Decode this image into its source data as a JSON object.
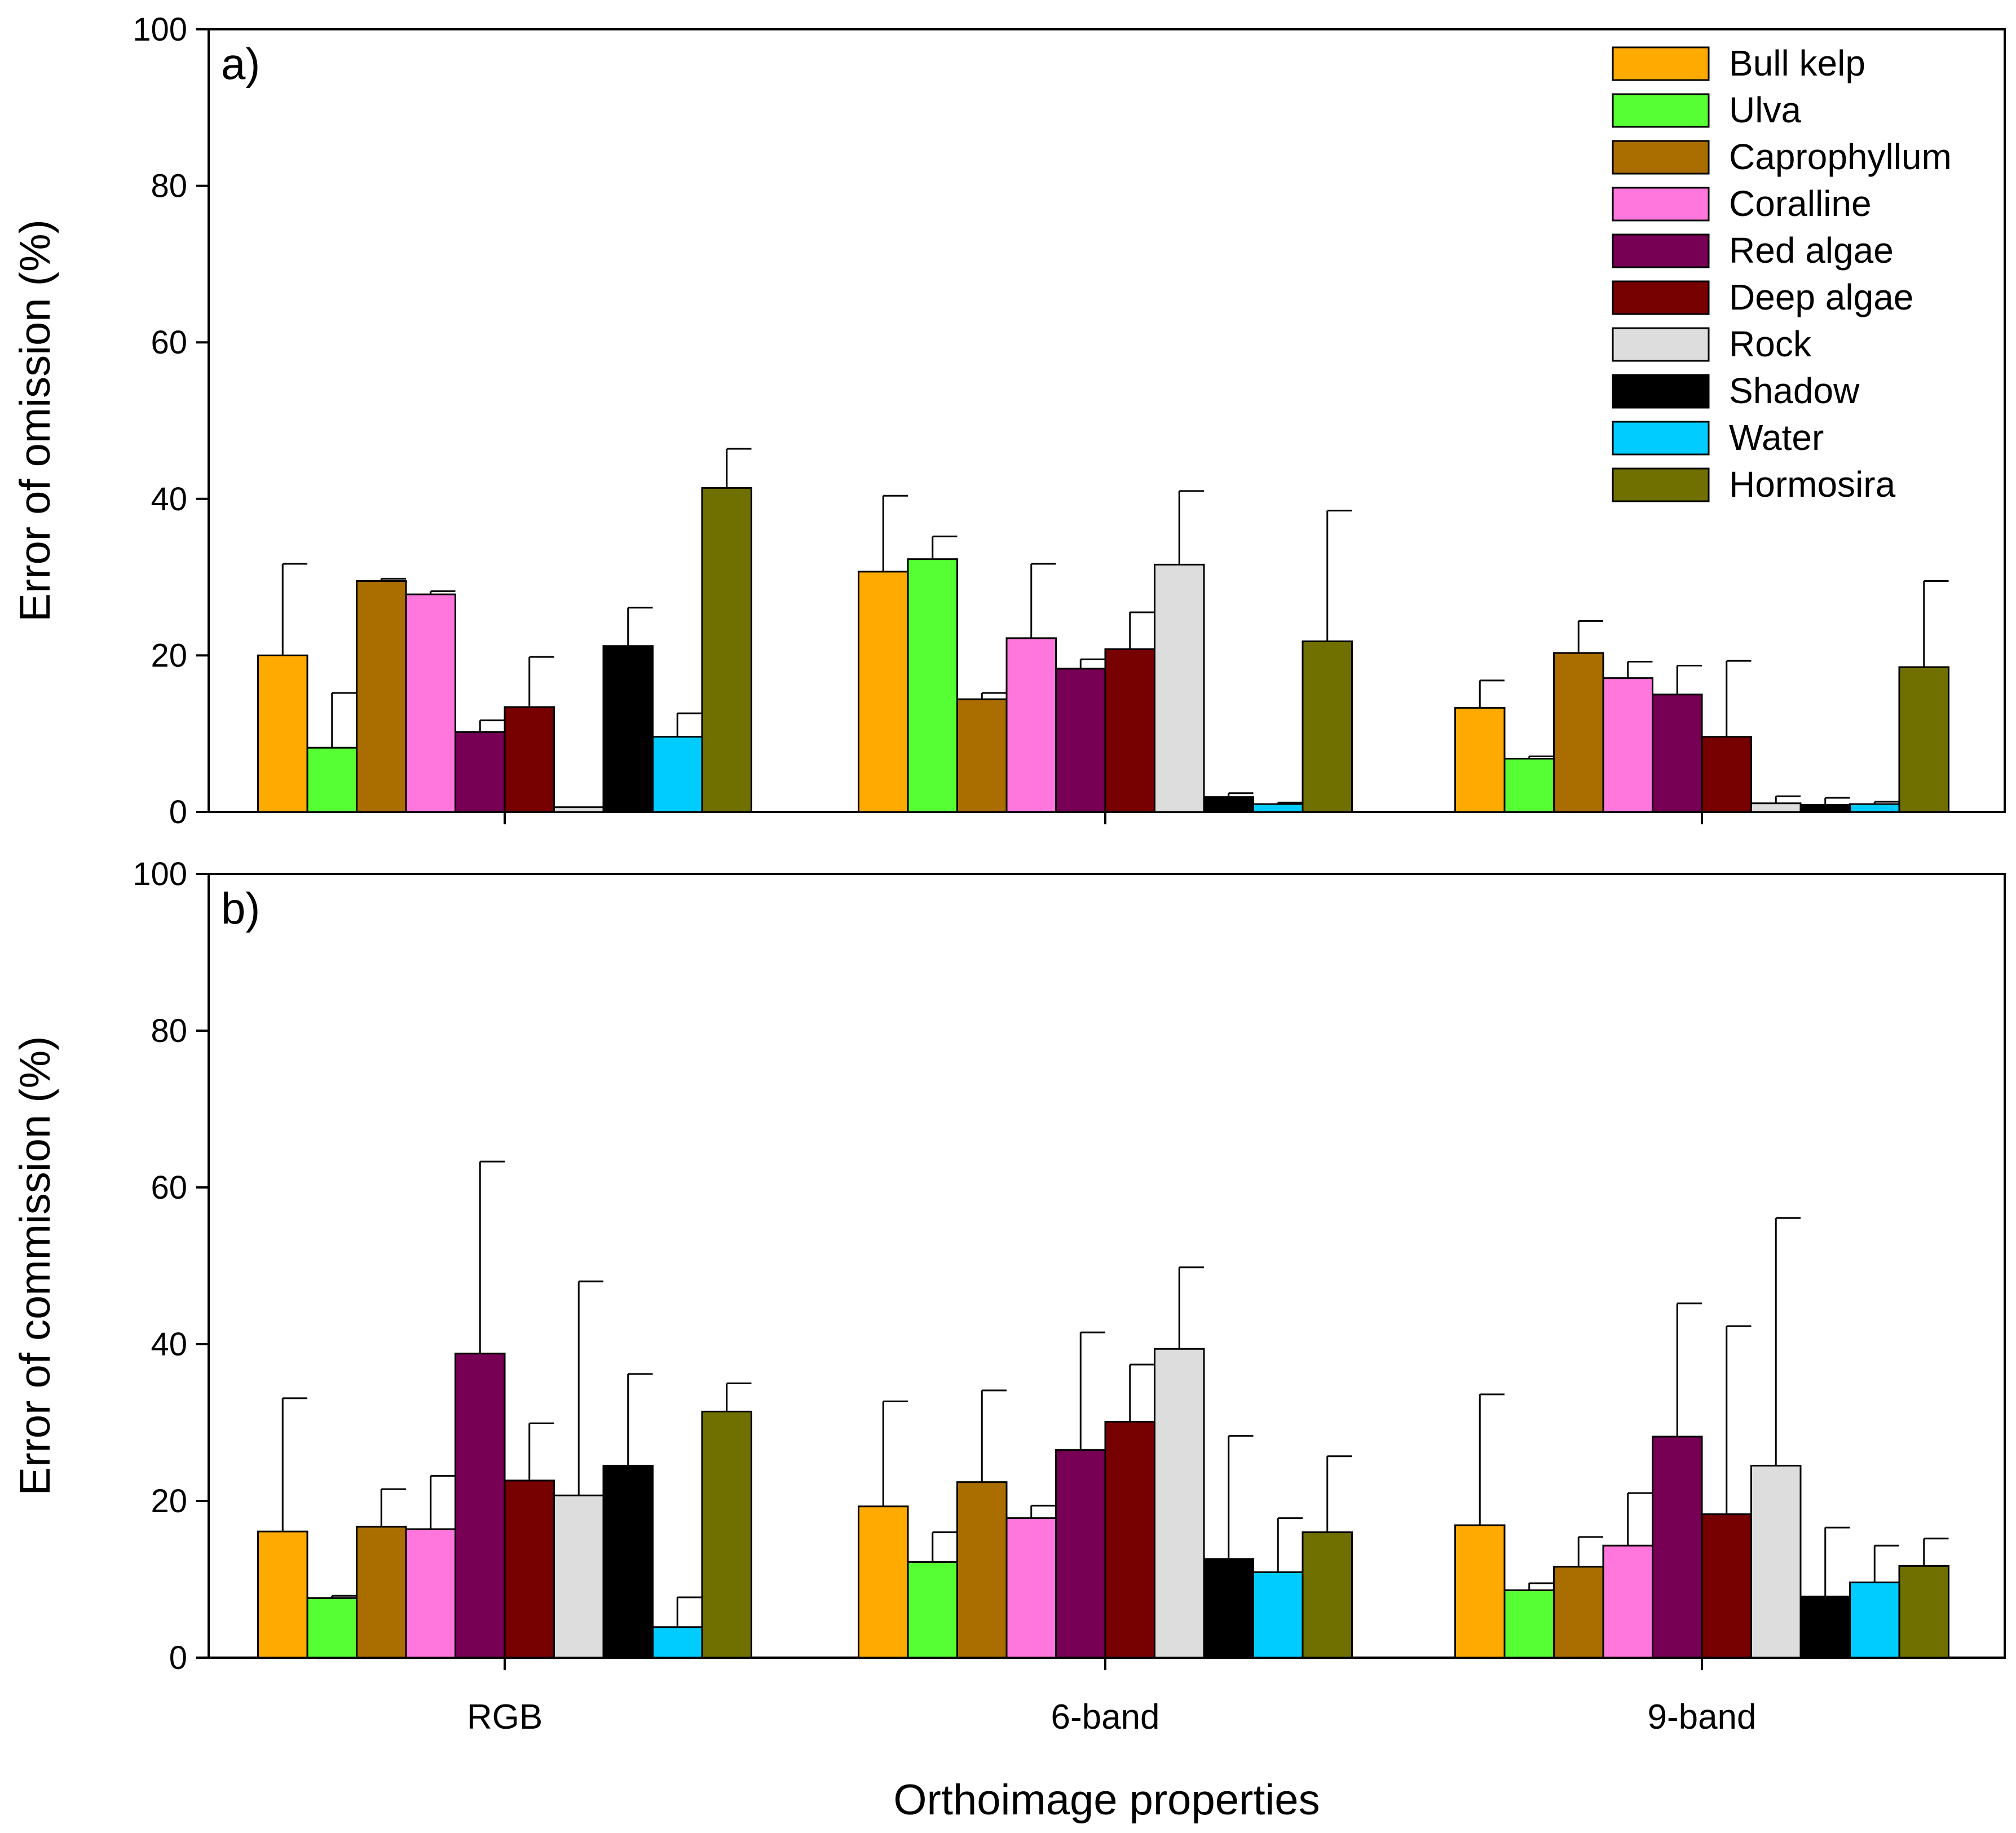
{
  "chart_data": {
    "type": "bar",
    "xlabel": "Orthoimage properties",
    "categories": [
      "RGB",
      "6-band",
      "9-band"
    ],
    "legend_position": "top-right of panel a",
    "series_names": [
      "Bull kelp",
      "Ulva",
      "Caprophyllum",
      "Coralline",
      "Red algae",
      "Deep algae",
      "Rock",
      "Shadow",
      "Water",
      "Hormosira"
    ],
    "colors": [
      "#ffaa00",
      "#55ff33",
      "#aa6e00",
      "#ff77dd",
      "#770055",
      "#770000",
      "#dddddd",
      "#000000",
      "#00ccff",
      "#707000"
    ],
    "panels": [
      {
        "label": "a)",
        "ylabel": "Error of omission (%)",
        "ylim": [
          0,
          100
        ],
        "yticks": [
          "0",
          "20",
          "40",
          "60",
          "80",
          "100"
        ],
        "values": [
          [
            20.0,
            8.2,
            29.5,
            27.8,
            10.2,
            13.4,
            0.6,
            21.2,
            9.6,
            41.4
          ],
          [
            30.7,
            32.3,
            14.4,
            22.2,
            18.3,
            20.8,
            31.6,
            1.9,
            1.0,
            21.8
          ],
          [
            13.3,
            6.8,
            20.3,
            17.1,
            15.0,
            9.6,
            1.1,
            0.9,
            1.0,
            18.5
          ]
        ],
        "errors": [
          [
            11.7,
            7.0,
            0.3,
            0.4,
            1.5,
            6.4,
            0.0,
            4.9,
            3.0,
            5.0
          ],
          [
            9.7,
            2.9,
            0.8,
            9.5,
            1.2,
            4.7,
            9.4,
            0.5,
            0.2,
            16.7
          ],
          [
            3.5,
            0.3,
            4.1,
            2.1,
            3.7,
            9.7,
            0.9,
            0.9,
            0.3,
            11.0
          ]
        ]
      },
      {
        "label": "b)",
        "ylabel": "Error of commission (%)",
        "ylim": [
          0,
          100
        ],
        "yticks": [
          "0",
          "20",
          "40",
          "60",
          "80",
          "100"
        ],
        "values": [
          [
            16.1,
            7.6,
            16.7,
            16.4,
            38.8,
            22.6,
            20.7,
            24.5,
            3.9,
            31.4
          ],
          [
            19.3,
            12.2,
            22.4,
            17.8,
            26.5,
            30.1,
            39.4,
            12.6,
            10.9,
            16.0
          ],
          [
            16.9,
            8.6,
            11.6,
            14.3,
            28.2,
            18.3,
            24.5,
            7.8,
            9.6,
            11.7
          ]
        ],
        "errors": [
          [
            17.0,
            0.3,
            4.8,
            6.8,
            24.5,
            7.3,
            27.3,
            11.7,
            3.8,
            3.6
          ],
          [
            13.4,
            3.8,
            11.7,
            1.6,
            15.0,
            7.3,
            10.4,
            15.7,
            6.9,
            9.7
          ],
          [
            16.7,
            0.9,
            3.8,
            6.7,
            17.0,
            24.0,
            31.6,
            8.8,
            4.7,
            3.5
          ]
        ]
      }
    ]
  }
}
